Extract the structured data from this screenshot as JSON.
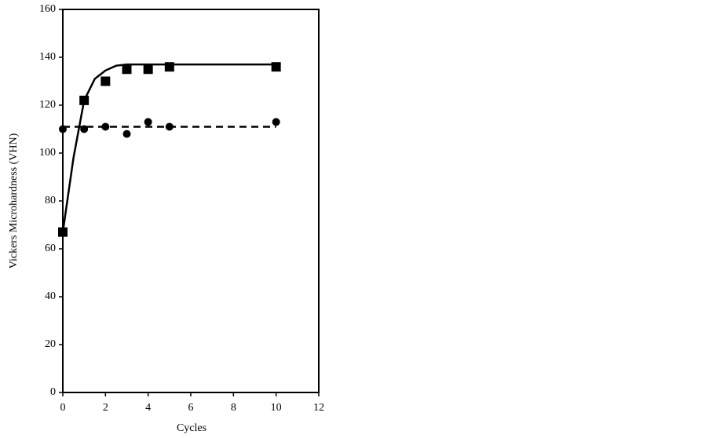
{
  "chart_data": {
    "type": "scatter",
    "x_label": "Cycles",
    "y_label": "Vickers Microhardness (VHN)",
    "xlim": [
      0,
      12
    ],
    "xticks": [
      0,
      2,
      4,
      6,
      8,
      10,
      12
    ],
    "ylim": [
      0,
      160
    ],
    "yticks": [
      0,
      20,
      40,
      60,
      80,
      100,
      120,
      140,
      160
    ],
    "series": [
      {
        "marker": "square",
        "color": "#000000",
        "x": [
          0,
          1,
          2,
          3,
          4,
          5,
          10
        ],
        "values": [
          67,
          122,
          130,
          135,
          135,
          136,
          136
        ],
        "fit": {
          "dash": false,
          "x": [
            0,
            0.5,
            1,
            1.5,
            2,
            2.5,
            3,
            10
          ],
          "values": [
            67,
            98,
            122,
            131,
            134.5,
            136.5,
            137,
            137
          ]
        }
      },
      {
        "marker": "circle",
        "color": "#000000",
        "x": [
          0,
          1,
          2,
          3,
          4,
          5,
          10
        ],
        "values": [
          110,
          110,
          111,
          108,
          113,
          111,
          113
        ],
        "fit": {
          "dash": true,
          "x": [
            0,
            10
          ],
          "values": [
            111,
            111
          ]
        }
      }
    ]
  }
}
